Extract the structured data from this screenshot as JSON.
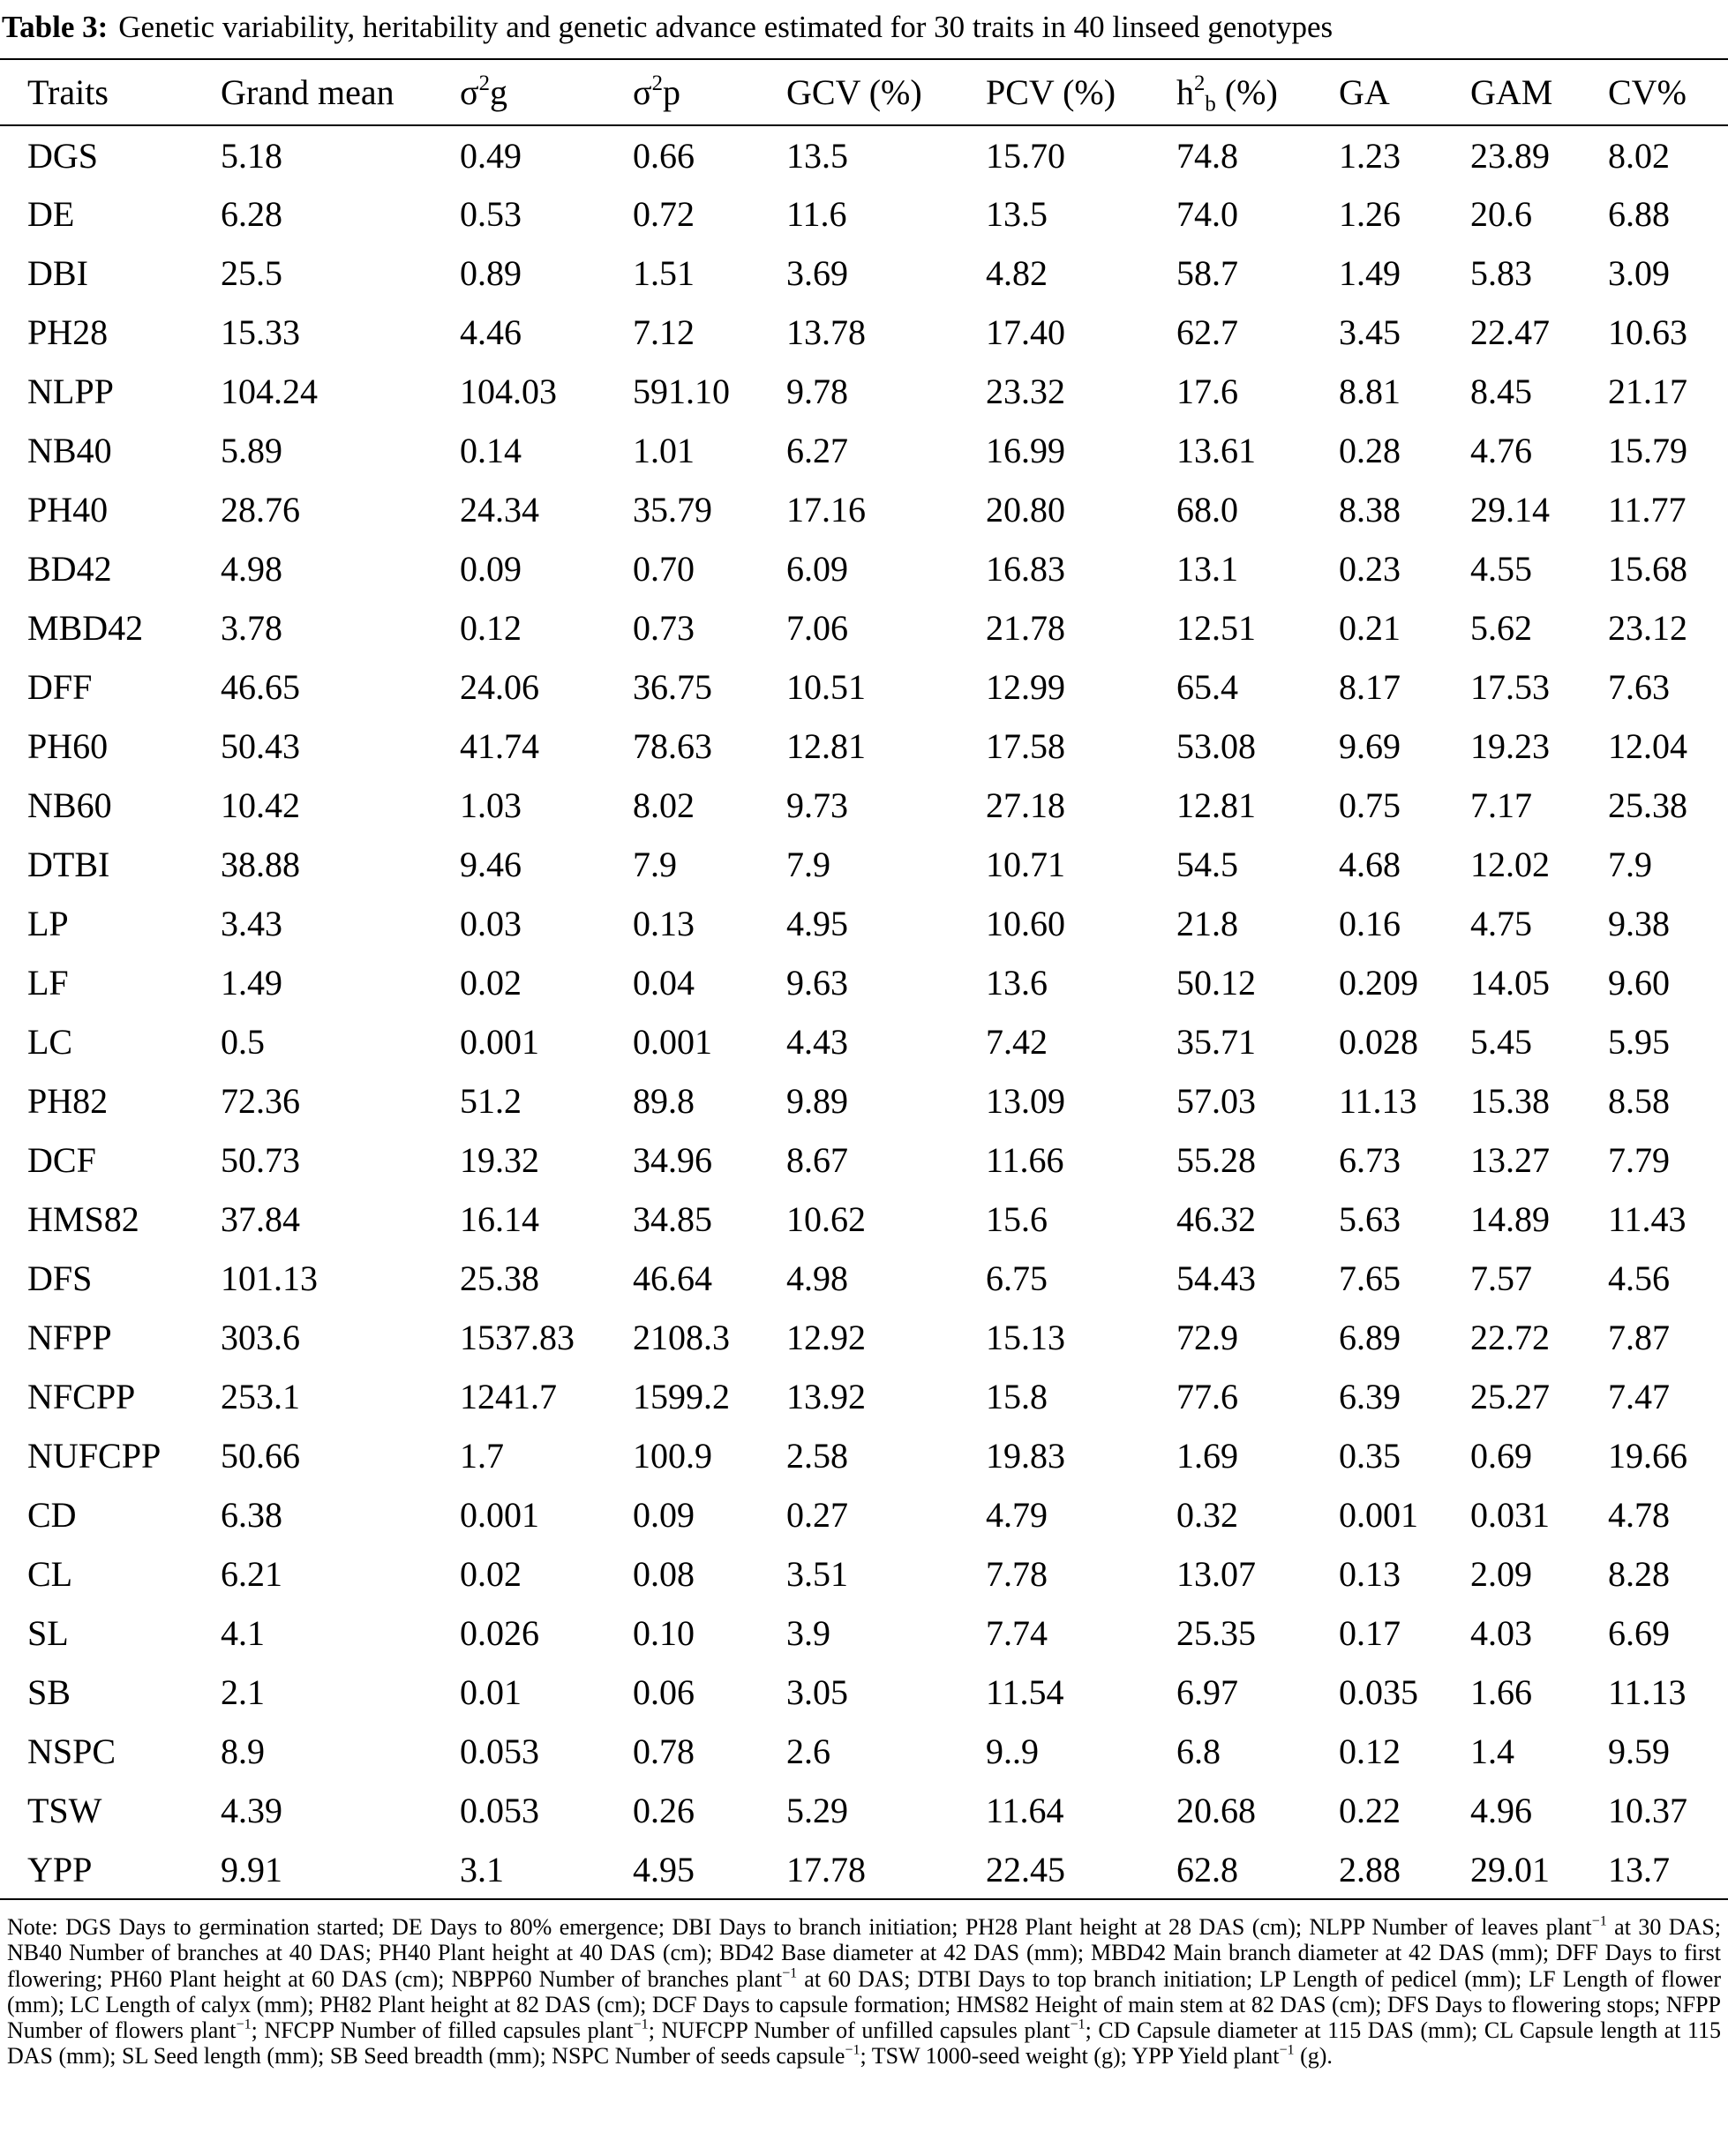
{
  "title": {
    "label": "Table 3:",
    "text": "Genetic variability, heritability and genetic advance estimated for 30 traits in 40 linseed genotypes"
  },
  "table": {
    "header": [
      "Traits",
      "Grand mean",
      [
        {
          "t": "σ"
        },
        {
          "sup": "2"
        },
        {
          "t": "g"
        }
      ],
      [
        {
          "t": "σ"
        },
        {
          "sup": "2"
        },
        {
          "t": "p"
        }
      ],
      "GCV (%)",
      "PCV (%)",
      [
        {
          "t": "h"
        },
        {
          "sup": "2"
        },
        {
          "sub": "b"
        },
        {
          "t": " (%)"
        }
      ],
      "GA",
      "GAM",
      "CV%"
    ],
    "rows": [
      [
        "DGS",
        "5.18",
        "0.49",
        "0.66",
        "13.5",
        "15.70",
        "74.8",
        "1.23",
        "23.89",
        "8.02"
      ],
      [
        "DE",
        "6.28",
        "0.53",
        "0.72",
        "11.6",
        "13.5",
        "74.0",
        "1.26",
        "20.6",
        "6.88"
      ],
      [
        "DBI",
        "25.5",
        "0.89",
        "1.51",
        "3.69",
        "4.82",
        "58.7",
        "1.49",
        "5.83",
        "3.09"
      ],
      [
        "PH28",
        "15.33",
        "4.46",
        "7.12",
        "13.78",
        "17.40",
        "62.7",
        "3.45",
        "22.47",
        "10.63"
      ],
      [
        "NLPP",
        "104.24",
        "104.03",
        "591.10",
        "9.78",
        "23.32",
        "17.6",
        "8.81",
        "8.45",
        "21.17"
      ],
      [
        "NB40",
        "5.89",
        "0.14",
        "1.01",
        "6.27",
        "16.99",
        "13.61",
        "0.28",
        "4.76",
        "15.79"
      ],
      [
        "PH40",
        "28.76",
        "24.34",
        "35.79",
        "17.16",
        "20.80",
        "68.0",
        "8.38",
        "29.14",
        "11.77"
      ],
      [
        "BD42",
        "4.98",
        "0.09",
        "0.70",
        "6.09",
        "16.83",
        "13.1",
        "0.23",
        "4.55",
        "15.68"
      ],
      [
        "MBD42",
        "3.78",
        "0.12",
        "0.73",
        "7.06",
        "21.78",
        "12.51",
        "0.21",
        "5.62",
        "23.12"
      ],
      [
        "DFF",
        "46.65",
        "24.06",
        "36.75",
        "10.51",
        "12.99",
        "65.4",
        "8.17",
        "17.53",
        "7.63"
      ],
      [
        "PH60",
        "50.43",
        "41.74",
        "78.63",
        "12.81",
        "17.58",
        "53.08",
        "9.69",
        "19.23",
        "12.04"
      ],
      [
        "NB60",
        "10.42",
        "1.03",
        "8.02",
        "9.73",
        "27.18",
        "12.81",
        "0.75",
        "7.17",
        "25.38"
      ],
      [
        "DTBI",
        "38.88",
        "9.46",
        "7.9",
        "7.9",
        "10.71",
        "54.5",
        "4.68",
        "12.02",
        "7.9"
      ],
      [
        "LP",
        "3.43",
        "0.03",
        "0.13",
        "4.95",
        "10.60",
        "21.8",
        "0.16",
        "4.75",
        "9.38"
      ],
      [
        "LF",
        "1.49",
        "0.02",
        "0.04",
        "9.63",
        "13.6",
        "50.12",
        "0.209",
        "14.05",
        "9.60"
      ],
      [
        "LC",
        "0.5",
        "0.001",
        "0.001",
        "4.43",
        "7.42",
        "35.71",
        "0.028",
        "5.45",
        "5.95"
      ],
      [
        "PH82",
        "72.36",
        "51.2",
        "89.8",
        "9.89",
        "13.09",
        "57.03",
        "11.13",
        "15.38",
        "8.58"
      ],
      [
        "DCF",
        "50.73",
        "19.32",
        "34.96",
        "8.67",
        "11.66",
        "55.28",
        "6.73",
        "13.27",
        "7.79"
      ],
      [
        "HMS82",
        "37.84",
        "16.14",
        "34.85",
        "10.62",
        "15.6",
        "46.32",
        "5.63",
        "14.89",
        "11.43"
      ],
      [
        "DFS",
        "101.13",
        "25.38",
        "46.64",
        "4.98",
        "6.75",
        "54.43",
        "7.65",
        "7.57",
        "4.56"
      ],
      [
        "NFPP",
        "303.6",
        "1537.83",
        "2108.3",
        "12.92",
        "15.13",
        "72.9",
        "6.89",
        "22.72",
        "7.87"
      ],
      [
        "NFCPP",
        "253.1",
        "1241.7",
        "1599.2",
        "13.92",
        "15.8",
        "77.6",
        "6.39",
        "25.27",
        "7.47"
      ],
      [
        "NUFCPP",
        "50.66",
        "1.7",
        "100.9",
        "2.58",
        "19.83",
        "1.69",
        "0.35",
        "0.69",
        "19.66"
      ],
      [
        "CD",
        "6.38",
        "0.001",
        "0.09",
        "0.27",
        "4.79",
        "0.32",
        "0.001",
        "0.031",
        "4.78"
      ],
      [
        "CL",
        "6.21",
        "0.02",
        "0.08",
        "3.51",
        "7.78",
        "13.07",
        "0.13",
        "2.09",
        "8.28"
      ],
      [
        "SL",
        "4.1",
        "0.026",
        "0.10",
        "3.9",
        "7.74",
        "25.35",
        "0.17",
        "4.03",
        "6.69"
      ],
      [
        "SB",
        "2.1",
        "0.01",
        "0.06",
        "3.05",
        "11.54",
        "6.97",
        "0.035",
        "1.66",
        "11.13"
      ],
      [
        "NSPC",
        "8.9",
        "0.053",
        "0.78",
        "2.6",
        "9..9",
        "6.8",
        "0.12",
        "1.4",
        "9.59"
      ],
      [
        "TSW",
        "4.39",
        "0.053",
        "0.26",
        "5.29",
        "11.64",
        "20.68",
        "0.22",
        "4.96",
        "10.37"
      ],
      [
        "YPP",
        "9.91",
        "3.1",
        "4.95",
        "17.78",
        "22.45",
        "62.8",
        "2.88",
        "29.01",
        "13.7"
      ]
    ]
  },
  "note": [
    {
      "t": "Note: DGS Days to germination started; DE Days to 80% emergence; DBI Days to branch initiation; PH28 Plant height at 28 DAS (cm); NLPP Number of leaves plant"
    },
    {
      "sup": "−1"
    },
    {
      "t": " at 30 DAS; NB40 Number of branches at 40 DAS; PH40 Plant height at 40 DAS (cm); BD42 Base diameter at 42 DAS (mm); MBD42 Main branch diameter at 42 DAS (mm); DFF Days to first flowering; PH60 Plant height at 60 DAS (cm); NBPP60 Number of branches plant"
    },
    {
      "sup": "−1"
    },
    {
      "t": " at 60 DAS; DTBI Days to top branch initiation; LP Length of pedicel (mm); LF Length of flower (mm); LC Length of calyx (mm); PH82 Plant height at 82 DAS (cm); DCF Days to capsule formation; HMS82 Height of main stem at 82 DAS (cm); DFS Days to flowering stops; NFPP Number of flowers plant"
    },
    {
      "sup": "−1"
    },
    {
      "t": "; NFCPP Number of filled capsules plant"
    },
    {
      "sup": "−1"
    },
    {
      "t": "; NUFCPP Number of unfilled capsules plant"
    },
    {
      "sup": "−1"
    },
    {
      "t": "; CD Capsule diameter at 115 DAS (mm); CL Capsule length at 115 DAS (mm); SL Seed length (mm); SB Seed breadth (mm); NSPC Number of seeds capsule"
    },
    {
      "sup": "−1"
    },
    {
      "t": "; TSW 1000-seed weight (g); YPP Yield plant"
    },
    {
      "sup": "−1"
    },
    {
      "t": " (g)."
    }
  ]
}
